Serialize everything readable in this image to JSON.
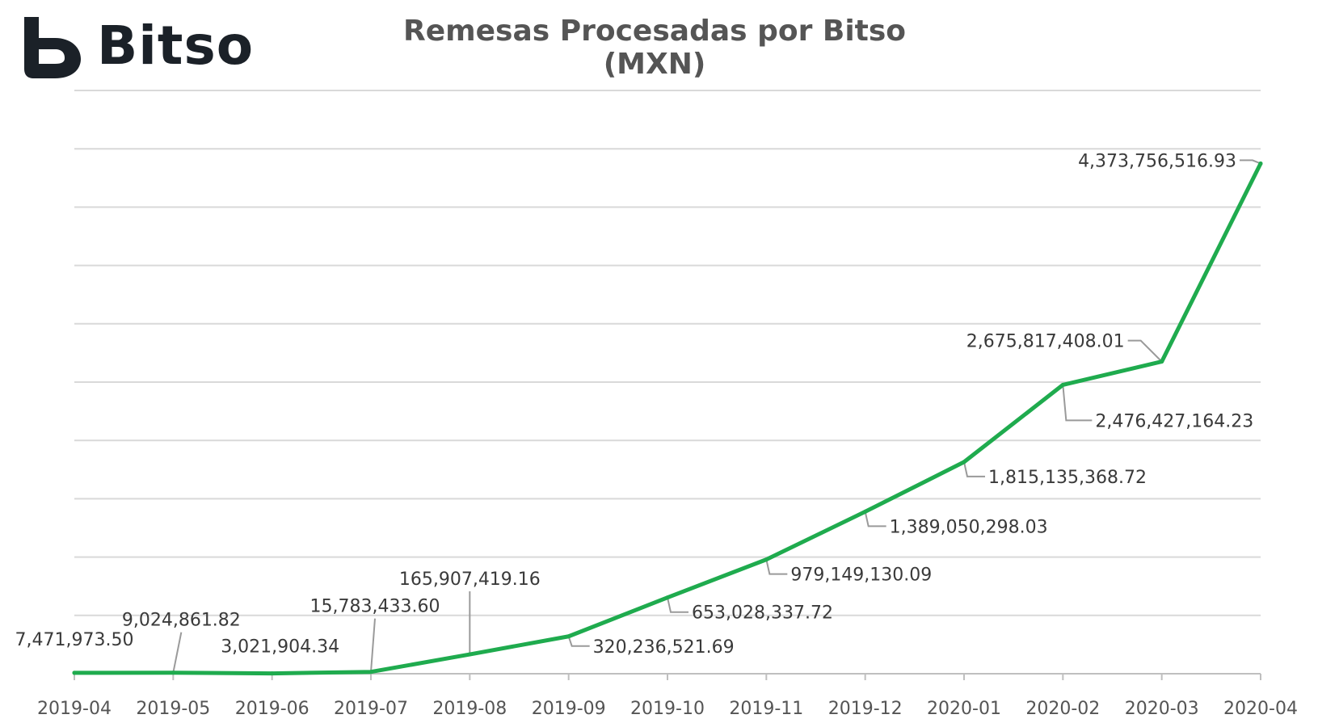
{
  "brand": {
    "name": "Bitso",
    "logo_color": "#1b2128"
  },
  "chart_data": {
    "type": "line",
    "title": "Remesas Procesadas por Bitso (MXN)",
    "xlabel": "",
    "ylabel": "",
    "ylim": [
      0,
      5000000000
    ],
    "grid": true,
    "line_color": "#1fab4e",
    "categories": [
      "2019-04",
      "2019-05",
      "2019-06",
      "2019-07",
      "2019-08",
      "2019-09",
      "2019-10",
      "2019-11",
      "2019-12",
      "2020-01",
      "2020-02",
      "2020-03",
      "2020-04"
    ],
    "values": [
      7471973.5,
      9024861.82,
      3021904.34,
      15783433.6,
      165907419.16,
      320236521.69,
      653028337.72,
      979149130.09,
      1389050298.03,
      1815135368.72,
      2476427164.23,
      2675817408.01,
      4373756516.93
    ],
    "data_labels": [
      "7,471,973.50",
      "9,024,861.82",
      "3,021,904.34",
      "15,783,433.60",
      "165,907,419.16",
      "320,236,521.69",
      "653,028,337.72",
      "979,149,130.09",
      "1,389,050,298.03",
      "1,815,135,368.72",
      "2,476,427,164.23",
      "2,675,817,408.01",
      "4,373,756,516.93"
    ]
  }
}
